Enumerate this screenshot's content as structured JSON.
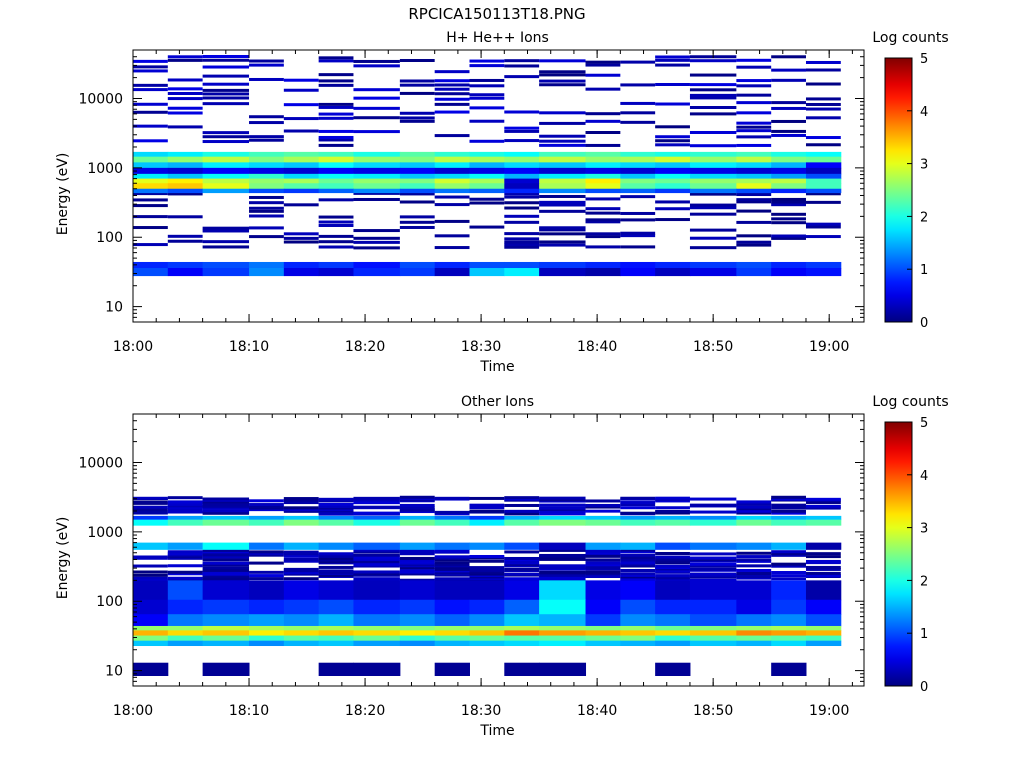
{
  "figure": {
    "title": "RPCICA150113T18.PNG"
  },
  "chart_data": [
    {
      "type": "heatmap",
      "title": "H+ He++ Ions",
      "xlabel": "Time",
      "ylabel": "Energy (eV)",
      "x_ticks": [
        "18:00",
        "18:10",
        "18:20",
        "18:30",
        "18:40",
        "18:50",
        "19:00"
      ],
      "xlim": [
        "18:00",
        "19:03"
      ],
      "y_scale": "log",
      "y_ticks": [
        10,
        100,
        1000,
        10000
      ],
      "ylim": [
        6,
        50000
      ],
      "colorbar": {
        "label": "Log counts",
        "ticks": [
          0,
          1,
          2,
          3,
          4,
          5
        ],
        "range": [
          0,
          5
        ],
        "colormap": "jet"
      },
      "band_timeline": {
        "times": [
          "18:00",
          "18:03",
          "18:06",
          "18:10",
          "18:13",
          "18:16",
          "18:19",
          "18:23",
          "18:26",
          "18:29",
          "18:32",
          "18:35",
          "18:39",
          "18:42",
          "18:45",
          "18:48",
          "18:52",
          "18:55",
          "18:58"
        ],
        "bands": [
          {
            "energy": [
              1450,
              1700
            ],
            "log_counts": [
              1.7,
              1.8,
              2.0,
              2.2,
              2.3,
              2.2,
              2.0,
              2.3,
              2.1,
              2.0,
              1.9,
              2.2,
              2.3,
              2.1,
              2.0,
              2.1,
              2.2,
              2.0,
              1.9
            ]
          },
          {
            "energy": [
              1200,
              1450
            ],
            "log_counts": [
              2.4,
              2.6,
              2.8,
              2.5,
              2.7,
              2.9,
              2.6,
              2.5,
              2.8,
              2.7,
              2.6,
              2.8,
              2.6,
              2.7,
              2.9,
              2.6,
              2.8,
              2.5,
              2.4
            ]
          },
          {
            "energy": [
              1000,
              1200
            ],
            "log_counts": [
              1.6,
              1.5,
              1.8,
              1.7,
              1.6,
              1.9,
              1.7,
              1.6,
              1.8,
              1.5,
              1.7,
              1.6,
              1.8,
              1.7,
              1.6,
              1.8,
              1.7,
              1.5,
              0.6
            ]
          },
          {
            "energy": [
              820,
              1000
            ],
            "log_counts": [
              0.5,
              0.4,
              0.6,
              0.5,
              0.4,
              0.6,
              0.5,
              0.6,
              0.4,
              0.5,
              0.6,
              0.4,
              0.5,
              0.4,
              0.6,
              0.5,
              0.4,
              0.5,
              0.3
            ]
          },
          {
            "energy": [
              700,
              820
            ],
            "log_counts": [
              1.8,
              1.6,
              1.9,
              2.1,
              1.7,
              1.9,
              1.8,
              1.6,
              1.7,
              1.9,
              1.5,
              1.8,
              2.0,
              1.6,
              1.9,
              1.7,
              1.6,
              1.4,
              1.0
            ]
          },
          {
            "energy": [
              600,
              700
            ],
            "log_counts": [
              3.0,
              3.2,
              2.8,
              2.6,
              2.7,
              2.4,
              2.6,
              2.5,
              2.9,
              2.7,
              0.4,
              2.8,
              3.2,
              2.5,
              2.4,
              2.6,
              2.7,
              2.8,
              2.2
            ]
          },
          {
            "energy": [
              500,
              600
            ],
            "log_counts": [
              3.3,
              3.4,
              3.0,
              2.5,
              2.3,
              2.2,
              2.4,
              2.2,
              2.6,
              2.4,
              0.3,
              2.7,
              3.0,
              2.3,
              2.1,
              2.4,
              3.0,
              2.5,
              2.2
            ]
          },
          {
            "energy": [
              440,
              500
            ],
            "log_counts": [
              1.2,
              1.0,
              1.4,
              1.0,
              0.9,
              1.1,
              1.3,
              1.0,
              1.2,
              1.1,
              0.8,
              1.3,
              1.0,
              1.1,
              0.9,
              1.2,
              1.0,
              0.8,
              1.0
            ]
          },
          {
            "energy": [
              36,
              44
            ],
            "log_counts": [
              0.8,
              0.9,
              1.0,
              1.2,
              0.8,
              0.9,
              0.7,
              1.0,
              0.8,
              1.0,
              1.0,
              0.9,
              0.8,
              0.7,
              0.8,
              0.9,
              1.0,
              0.8,
              0.9
            ]
          },
          {
            "energy": [
              28,
              36
            ],
            "log_counts": [
              1.0,
              0.6,
              0.9,
              1.3,
              0.5,
              0.4,
              0.8,
              0.9,
              0.3,
              1.6,
              1.8,
              0.3,
              0.2,
              0.6,
              0.3,
              0.5,
              0.9,
              0.6,
              0.7
            ]
          }
        ],
        "sparse_lines_above": "scattered counts near log 0.0–0.5 across 2000–45000 eV",
        "sparse_lines_below": "scattered counts near log 0.0–0.3 across 70–450 eV"
      }
    },
    {
      "type": "heatmap",
      "title": "Other Ions",
      "xlabel": "Time",
      "ylabel": "Energy (eV)",
      "x_ticks": [
        "18:00",
        "18:10",
        "18:20",
        "18:30",
        "18:40",
        "18:50",
        "19:00"
      ],
      "xlim": [
        "18:00",
        "19:03"
      ],
      "y_scale": "log",
      "y_ticks": [
        10,
        100,
        1000,
        10000
      ],
      "ylim": [
        6,
        50000
      ],
      "colorbar": {
        "label": "Log counts",
        "ticks": [
          0,
          1,
          2,
          3,
          4,
          5
        ],
        "range": [
          0,
          5
        ],
        "colormap": "jet"
      },
      "band_timeline": {
        "times": [
          "18:00",
          "18:03",
          "18:06",
          "18:10",
          "18:13",
          "18:16",
          "18:19",
          "18:23",
          "18:26",
          "18:29",
          "18:32",
          "18:35",
          "18:39",
          "18:42",
          "18:45",
          "18:48",
          "18:52",
          "18:55",
          "18:58"
        ],
        "bands": [
          {
            "energy": [
              1500,
              1700
            ],
            "log_counts": [
              0.9,
              1.4,
              1.6,
              1.4,
              1.6,
              1.3,
              1.1,
              1.5,
              1.2,
              0.9,
              1.5,
              1.7,
              1.6,
              1.4,
              1.5,
              1.3,
              1.7,
              1.5,
              1.6
            ]
          },
          {
            "energy": [
              1250,
              1500
            ],
            "log_counts": [
              1.9,
              2.2,
              2.4,
              2.2,
              2.5,
              2.3,
              2.0,
              2.4,
              2.2,
              1.8,
              2.3,
              2.5,
              2.4,
              2.2,
              2.3,
              2.1,
              2.4,
              2.2,
              2.3
            ]
          },
          {
            "energy": [
              560,
              700
            ],
            "log_counts": [
              1.6,
              1.4,
              1.9,
              1.2,
              1.5,
              1.3,
              1.1,
              1.4,
              1.2,
              1.3,
              1.0,
              0.3,
              1.4,
              1.5,
              1.0,
              1.2,
              1.3,
              1.5,
              0.2
            ]
          },
          {
            "energy": [
              105,
              200
            ],
            "log_counts": [
              0.3,
              1.0,
              0.4,
              0.3,
              0.5,
              0.4,
              0.3,
              0.4,
              0.3,
              0.3,
              0.5,
              1.7,
              0.5,
              0.6,
              0.3,
              0.4,
              0.4,
              0.8,
              0.2
            ]
          },
          {
            "energy": [
              65,
              105
            ],
            "log_counts": [
              0.4,
              0.8,
              0.9,
              0.8,
              0.9,
              1.0,
              0.8,
              0.9,
              0.7,
              0.8,
              1.1,
              1.9,
              0.6,
              1.0,
              0.8,
              0.8,
              0.5,
              0.9,
              0.6
            ]
          },
          {
            "energy": [
              44,
              65
            ],
            "log_counts": [
              0.6,
              1.2,
              1.3,
              1.4,
              1.3,
              1.5,
              1.2,
              1.3,
              1.1,
              1.3,
              1.6,
              1.5,
              0.9,
              1.3,
              1.2,
              1.0,
              1.2,
              1.3,
              1.0
            ]
          },
          {
            "energy": [
              38,
              44
            ],
            "log_counts": [
              2.6,
              2.6,
              2.8,
              2.7,
              2.6,
              2.7,
              2.6,
              2.5,
              2.6,
              2.6,
              2.7,
              2.6,
              2.5,
              2.6,
              2.4,
              2.5,
              2.6,
              2.7,
              2.6
            ]
          },
          {
            "energy": [
              32,
              38
            ],
            "log_counts": [
              3.5,
              3.3,
              3.4,
              3.2,
              3.3,
              3.4,
              3.3,
              3.2,
              3.3,
              3.4,
              3.8,
              3.6,
              3.5,
              3.4,
              3.3,
              3.4,
              3.7,
              3.6,
              3.5
            ]
          },
          {
            "energy": [
              27,
              32
            ],
            "log_counts": [
              2.5,
              2.2,
              2.4,
              2.1,
              2.3,
              2.2,
              2.4,
              2.1,
              2.3,
              2.4,
              2.3,
              2.3,
              2.4,
              2.5,
              2.1,
              2.3,
              2.4,
              2.3,
              2.2
            ]
          },
          {
            "energy": [
              23,
              27
            ],
            "log_counts": [
              1.6,
              1.4,
              1.5,
              1.3,
              1.5,
              1.6,
              1.4,
              1.3,
              1.5,
              1.6,
              1.7,
              1.8,
              1.6,
              1.5,
              1.4,
              1.6,
              1.5,
              1.7,
              1.4
            ]
          },
          {
            "energy": [
              8.5,
              13
            ],
            "log_counts": [
              0.1,
              null,
              0.1,
              null,
              null,
              0.1,
              0.1,
              null,
              0.1,
              null,
              0.1,
              0.1,
              null,
              null,
              0.1,
              null,
              null,
              0.1,
              null
            ]
          }
        ],
        "sparse_lines_above": "scattered counts near log 0.0–0.4 across 1800–3200 eV",
        "sparse_lines_mid": "scattered counts near log 0.0–0.6 across 200–560 eV"
      }
    }
  ]
}
